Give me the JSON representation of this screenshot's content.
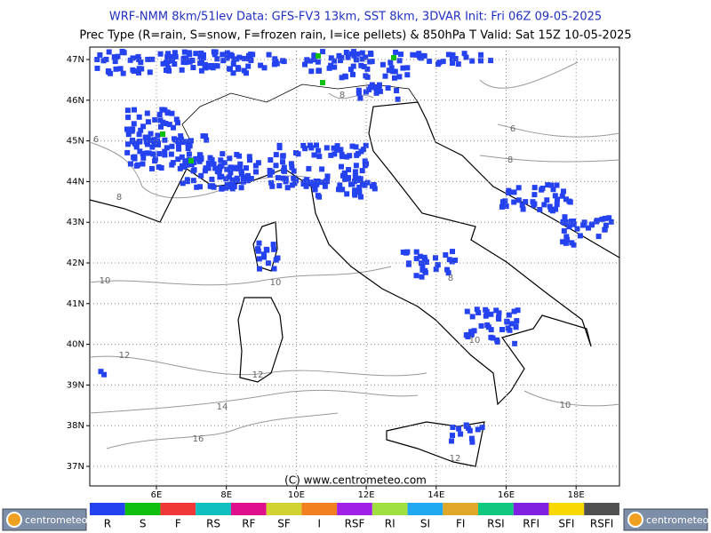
{
  "header": {
    "line1": "WRF-NMM 8km/51lev  Data: GFS-FV3 13km, SST 8km, 3DVAR  Init: Fri 06Z 09-05-2025",
    "line2": "Prec Type (R=rain, S=snow, F=frozen rain, I=ice pellets) & 850hPa T  Valid: Sat 15Z 10-05-2025"
  },
  "map": {
    "lat_labels": [
      "47N",
      "46N",
      "45N",
      "44N",
      "43N",
      "42N",
      "41N",
      "40N",
      "39N",
      "38N",
      "37N"
    ],
    "lon_labels": [
      "6E",
      "8E",
      "10E",
      "12E",
      "14E",
      "16E",
      "18E"
    ],
    "contour_labels": [
      "6",
      "8",
      "8",
      "6",
      "8",
      "10",
      "10",
      "12",
      "12",
      "14",
      "16",
      "10",
      "8",
      "12",
      "10"
    ],
    "credit": "(C) www.centrometeo.com"
  },
  "legend": {
    "items": [
      {
        "label": "R",
        "color": "#2442f0"
      },
      {
        "label": "S",
        "color": "#10c010"
      },
      {
        "label": "F",
        "color": "#f03838"
      },
      {
        "label": "RS",
        "color": "#10c0c0"
      },
      {
        "label": "RF",
        "color": "#e0108c"
      },
      {
        "label": "SF",
        "color": "#d2d232"
      },
      {
        "label": "I",
        "color": "#f08020"
      },
      {
        "label": "RSF",
        "color": "#a020e8"
      },
      {
        "label": "RI",
        "color": "#a0e040"
      },
      {
        "label": "SI",
        "color": "#20a8f0"
      },
      {
        "label": "FI",
        "color": "#e0a828"
      },
      {
        "label": "RSI",
        "color": "#10c880"
      },
      {
        "label": "RFI",
        "color": "#8020e0"
      },
      {
        "label": "SFI",
        "color": "#f8d800"
      },
      {
        "label": "RSFI",
        "color": "#505050"
      }
    ]
  },
  "logos": [
    "centrometeo",
    "centrometeo"
  ]
}
